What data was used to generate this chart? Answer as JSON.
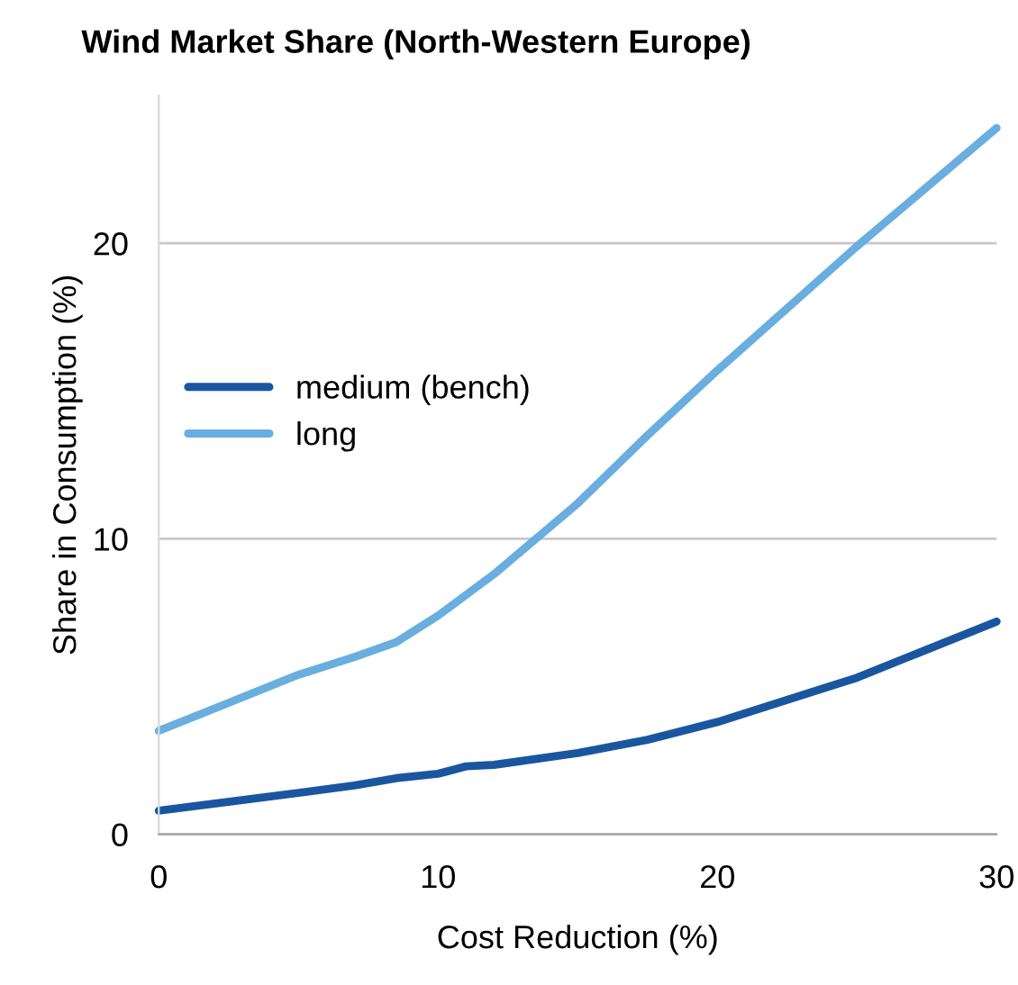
{
  "chart_data": {
    "type": "line",
    "title": "Wind Market Share (North-Western Europe)",
    "xlabel": "Cost Reduction (%)",
    "ylabel": "Share in Consumption (%)",
    "x": [
      0,
      5,
      7,
      8.5,
      10,
      11,
      12,
      15,
      17.5,
      20,
      25,
      30
    ],
    "series": [
      {
        "name": "medium (bench)",
        "color": "#1a56a0",
        "values": [
          0.8,
          1.4,
          1.65,
          1.9,
          2.05,
          2.3,
          2.35,
          2.75,
          3.2,
          3.8,
          5.3,
          7.2
        ]
      },
      {
        "name": "long",
        "color": "#6aaee0",
        "values": [
          3.5,
          5.4,
          6.0,
          6.5,
          7.4,
          8.1,
          8.8,
          11.2,
          13.5,
          15.7,
          19.9,
          23.9
        ]
      }
    ],
    "xlim": [
      0,
      30
    ],
    "ylim": [
      0,
      25
    ],
    "xticks": [
      0,
      10,
      20,
      30
    ],
    "yticks": [
      0,
      10,
      20
    ],
    "grid": "y",
    "legend": "left",
    "marker": "none",
    "line_style": "solid"
  }
}
